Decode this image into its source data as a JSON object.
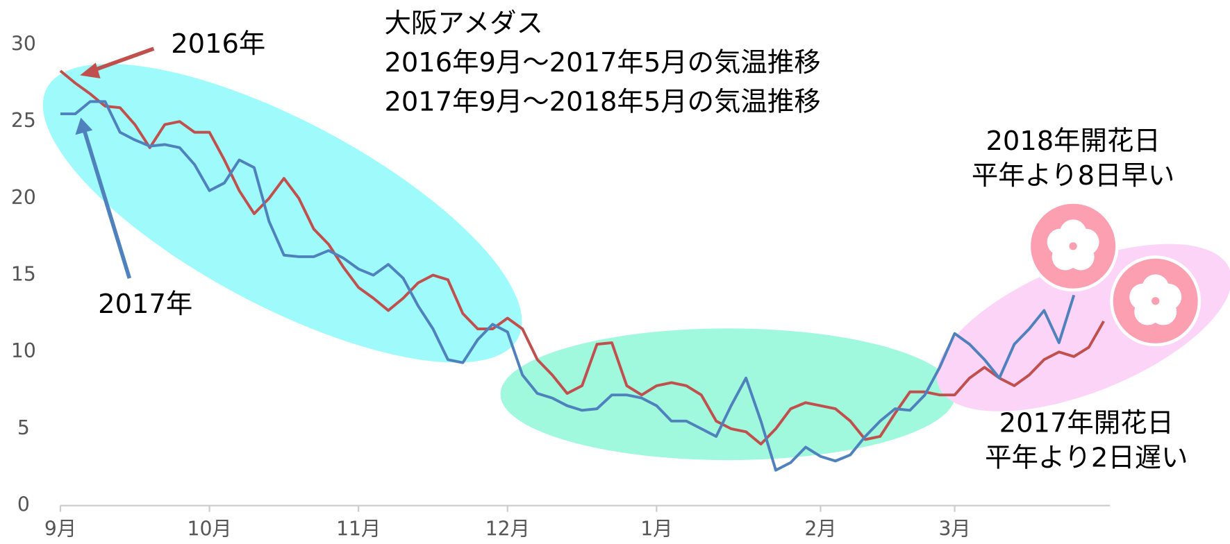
{
  "chart_data": {
    "type": "line",
    "title": [
      "大阪アメダス",
      "2016年9月～2017年5月の気温推移",
      "2017年9月～2018年5月の気温推移"
    ],
    "categories": [
      "9月",
      null,
      null,
      null,
      null,
      null,
      null,
      null,
      null,
      null,
      "10月",
      null,
      null,
      null,
      null,
      null,
      null,
      null,
      null,
      null,
      "11月",
      null,
      null,
      null,
      null,
      null,
      null,
      null,
      null,
      null,
      "12月",
      null,
      null,
      null,
      null,
      null,
      null,
      null,
      null,
      null,
      "1月",
      null,
      null,
      null,
      null,
      null,
      null,
      null,
      null,
      null,
      null,
      "2月",
      null,
      null,
      null,
      null,
      null,
      null,
      null,
      null,
      "3月",
      null,
      null,
      null,
      null,
      null,
      null,
      null,
      null,
      null,
      null
    ],
    "series": [
      {
        "name": "2016年",
        "color": "#c0504d",
        "values": [
          28.3,
          27.5,
          26.8,
          26.0,
          25.9,
          24.8,
          23.3,
          24.8,
          25.0,
          24.3,
          24.3,
          22.5,
          20.5,
          19.0,
          20.0,
          21.3,
          20.0,
          18.0,
          17.0,
          15.5,
          14.2,
          13.5,
          12.7,
          13.5,
          14.5,
          15.0,
          14.7,
          12.5,
          11.5,
          11.5,
          12.2,
          11.5,
          9.5,
          8.5,
          7.3,
          7.8,
          10.5,
          10.6,
          7.8,
          7.2,
          7.8,
          8.0,
          7.8,
          7.2,
          5.5,
          5.0,
          4.8,
          4.0,
          5.0,
          6.3,
          6.7,
          6.5,
          6.3,
          5.5,
          4.3,
          4.5,
          6.0,
          7.4,
          7.4,
          7.2,
          7.2,
          8.3,
          9.0,
          8.3,
          7.8,
          8.5,
          9.5,
          10.0,
          9.7,
          10.3,
          12.0
        ]
      },
      {
        "name": "2017年",
        "color": "#4f81bd",
        "values": [
          25.5,
          25.5,
          26.3,
          26.3,
          24.3,
          23.8,
          23.4,
          23.5,
          23.3,
          22.2,
          20.5,
          21.0,
          22.5,
          22.0,
          18.5,
          16.3,
          16.2,
          16.2,
          16.6,
          16.1,
          15.4,
          15.0,
          15.7,
          14.8,
          13.0,
          11.5,
          9.5,
          9.3,
          10.8,
          11.8,
          11.3,
          8.5,
          7.3,
          7.0,
          6.5,
          6.2,
          6.3,
          7.2,
          7.2,
          7.0,
          6.5,
          5.5,
          5.5,
          5.0,
          4.5,
          6.5,
          8.3,
          5.5,
          2.3,
          2.8,
          3.8,
          3.2,
          2.9,
          3.3,
          4.5,
          5.5,
          6.3,
          6.2,
          7.2,
          9.0,
          11.2,
          10.5,
          9.5,
          8.3,
          10.5,
          11.5,
          12.7,
          10.6,
          13.7,
          null,
          null
        ]
      }
    ],
    "ylim": [
      0,
      30
    ],
    "yticks": [
      0,
      5,
      10,
      15,
      20,
      25,
      30
    ],
    "grid": false,
    "annotations": [
      "2018年開花日",
      "平年より8日早い",
      "2017年開花日",
      "平年より2日遅い"
    ]
  }
}
